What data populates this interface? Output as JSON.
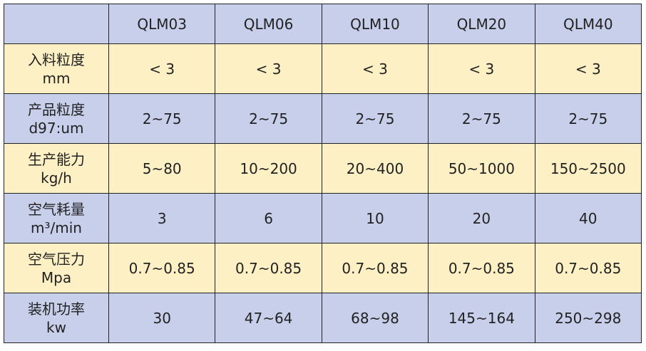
{
  "table": {
    "header": [
      "QLM03",
      "QLM06",
      "QLM10",
      "QLM20",
      "QLM40"
    ],
    "rows": [
      {
        "label": [
          "入料粒度",
          "mm"
        ],
        "cells": [
          "< 3",
          "< 3",
          "< 3",
          "< 3",
          "< 3"
        ]
      },
      {
        "label": [
          "产品粒度",
          "d97:um"
        ],
        "cells": [
          "2~75",
          "2~75",
          "2~75",
          "2~75",
          "2~75"
        ]
      },
      {
        "label": [
          "生产能力",
          "kg/h"
        ],
        "cells": [
          "5~80",
          "10~200",
          "20~400",
          "50~1000",
          "150~2500"
        ]
      },
      {
        "label": [
          "空气耗量",
          "m³/min"
        ],
        "cells": [
          "3",
          "6",
          "10",
          "20",
          "40"
        ]
      },
      {
        "label": [
          "空气压力",
          "Mpa"
        ],
        "cells": [
          "0.7~0.85",
          "0.7~0.85",
          "0.7~0.85",
          "0.7~0.85",
          "0.7~0.85"
        ]
      },
      {
        "label": [
          "装机功率",
          "kw"
        ],
        "cells": [
          "30",
          "47~64",
          "68~98",
          "145~164",
          "250~298"
        ]
      }
    ]
  }
}
